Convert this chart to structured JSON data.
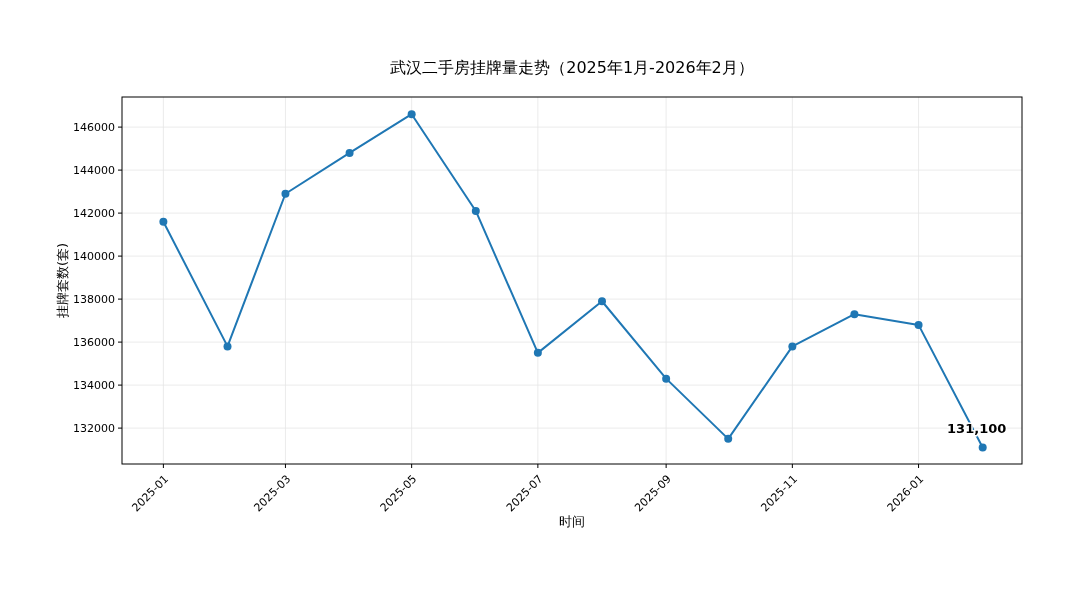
{
  "chart_data": {
    "type": "line",
    "title": "武汉二手房挂牌量走势（2025年1月-2026年2月）",
    "xlabel": "时间",
    "ylabel": "挂牌套数(套)",
    "x": [
      "2025-01",
      "2025-02",
      "2025-03",
      "2025-04",
      "2025-05",
      "2025-06",
      "2025-07",
      "2025-08",
      "2025-09",
      "2025-10",
      "2025-11",
      "2025-12",
      "2026-01",
      "2026-02"
    ],
    "series": [
      {
        "color": "#1f77b4",
        "values": [
          141600,
          135800,
          142900,
          144800,
          146600,
          142100,
          135500,
          137900,
          134300,
          131500,
          135800,
          137300,
          136800,
          131100
        ],
        "value_labels": [
          null,
          null,
          null,
          null,
          null,
          null,
          null,
          null,
          null,
          null,
          null,
          null,
          null,
          "131,100"
        ]
      }
    ],
    "xlim": [
      "2024-12-12",
      "2026-02-20"
    ],
    "xticks": [
      "2025-01",
      "2025-03",
      "2025-05",
      "2025-07",
      "2025-09",
      "2025-11",
      "2026-01"
    ],
    "ylim": [
      130330,
      147400
    ],
    "yticks": [
      132000,
      134000,
      136000,
      138000,
      140000,
      142000,
      144000,
      146000
    ],
    "grid": true,
    "marker": "circle",
    "line_style": "solid"
  }
}
